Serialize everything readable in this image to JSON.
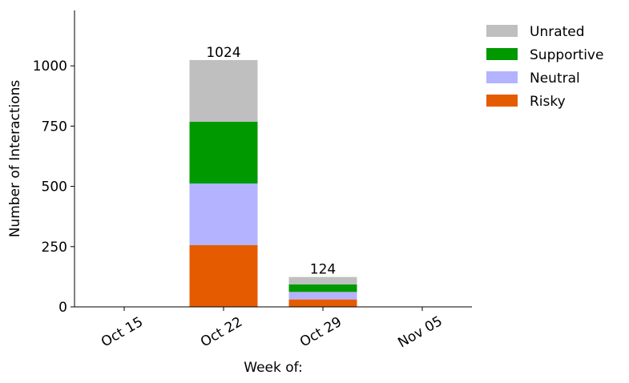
{
  "chart_data": {
    "type": "bar",
    "stacked": true,
    "categories": [
      "Oct 15",
      "Oct 22",
      "Oct 29",
      "Nov 05"
    ],
    "series": [
      {
        "name": "Risky",
        "color": "#e55c00",
        "values": [
          0,
          256,
          31,
          0
        ]
      },
      {
        "name": "Neutral",
        "color": "#b3b3ff",
        "values": [
          0,
          256,
          31,
          0
        ]
      },
      {
        "name": "Supportive",
        "color": "#009900",
        "values": [
          0,
          256,
          31,
          0
        ]
      },
      {
        "name": "Unrated",
        "color": "#bfbfbf",
        "values": [
          0,
          256,
          31,
          0
        ]
      }
    ],
    "totals": [
      null,
      "1024",
      "124",
      null
    ],
    "xlabel": "Week of:",
    "ylabel": "Number of Interactions",
    "ylim": [
      0,
      1230
    ],
    "yticks": [
      0,
      250,
      500,
      750,
      1000
    ],
    "grid": false,
    "legend": "top-right outside"
  }
}
